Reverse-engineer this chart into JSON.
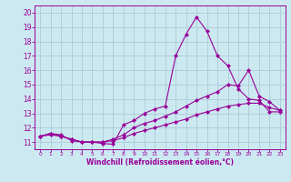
{
  "xlabel": "Windchill (Refroidissement éolien,°C)",
  "ylabel": "",
  "bg_color": "#cce8f0",
  "grid_color": "#aaccd8",
  "line_color": "#990099",
  "xlim": [
    -0.5,
    23.5
  ],
  "ylim": [
    10.5,
    20.5
  ],
  "yticks": [
    11,
    12,
    13,
    14,
    15,
    16,
    17,
    18,
    19,
    20
  ],
  "xticks": [
    0,
    1,
    2,
    3,
    4,
    5,
    6,
    7,
    8,
    9,
    10,
    11,
    12,
    13,
    14,
    15,
    16,
    17,
    18,
    19,
    20,
    21,
    22,
    23
  ],
  "line1_x": [
    0,
    1,
    2,
    3,
    4,
    5,
    6,
    7,
    8,
    9,
    10,
    11,
    12,
    13,
    14,
    15,
    16,
    17,
    18,
    19,
    20,
    21,
    22,
    23
  ],
  "line1_y": [
    11.4,
    11.6,
    11.5,
    11.1,
    11.0,
    11.0,
    10.9,
    10.85,
    12.2,
    12.5,
    13.0,
    13.3,
    13.5,
    17.0,
    18.5,
    19.7,
    18.7,
    17.0,
    16.3,
    14.7,
    14.0,
    13.9,
    13.1,
    13.1
  ],
  "line2_x": [
    0,
    1,
    2,
    3,
    4,
    5,
    6,
    7,
    8,
    9,
    10,
    11,
    12,
    13,
    14,
    15,
    16,
    17,
    18,
    19,
    20,
    21,
    22,
    23
  ],
  "line2_y": [
    11.4,
    11.6,
    11.4,
    11.2,
    11.0,
    11.0,
    11.0,
    11.2,
    11.5,
    12.0,
    12.3,
    12.5,
    12.8,
    13.1,
    13.5,
    13.9,
    14.2,
    14.5,
    15.0,
    14.9,
    16.0,
    14.2,
    13.8,
    13.2
  ],
  "line3_x": [
    0,
    1,
    2,
    3,
    4,
    5,
    6,
    7,
    8,
    9,
    10,
    11,
    12,
    13,
    14,
    15,
    16,
    17,
    18,
    19,
    20,
    21,
    22,
    23
  ],
  "line3_y": [
    11.4,
    11.5,
    11.4,
    11.2,
    11.0,
    11.0,
    11.0,
    11.1,
    11.3,
    11.6,
    11.8,
    12.0,
    12.2,
    12.4,
    12.6,
    12.9,
    13.1,
    13.3,
    13.5,
    13.6,
    13.7,
    13.7,
    13.4,
    13.2
  ],
  "xtick_fontsize": 4.2,
  "ytick_fontsize": 5.5,
  "xlabel_fontsize": 5.5,
  "marker_size": 2.5,
  "linewidth": 0.8
}
